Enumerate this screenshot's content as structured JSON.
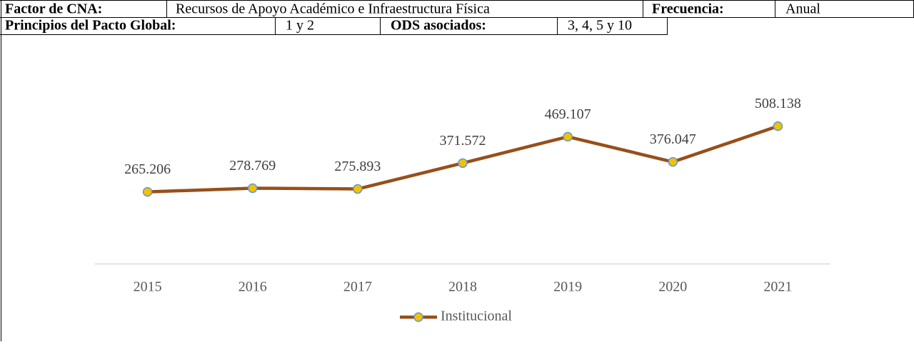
{
  "header": {
    "factor_label": "Factor de CNA:",
    "factor": "Recursos de Apoyo Académico e Infraestructura Física",
    "frecuencia_label": "Frecuencia:",
    "frecuencia": "Anual",
    "principios_label": "Principios del Pacto Global:",
    "principios": "1 y 2",
    "ods_label": "ODS asociados:",
    "ods": "3, 4, 5 y 10"
  },
  "chart_data": {
    "type": "line",
    "categories": [
      "2015",
      "2016",
      "2017",
      "2018",
      "2019",
      "2020",
      "2021"
    ],
    "series": [
      {
        "name": "Institucional",
        "color": "#96501a",
        "marker_color": "#f5c000",
        "marker_edge": "#5b9bd5",
        "values": [
          265206,
          278769,
          275893,
          371572,
          469107,
          376047,
          508138
        ],
        "value_labels": [
          "265.206",
          "278.769",
          "275.893",
          "371.572",
          "469.107",
          "376.047",
          "508.138"
        ]
      }
    ],
    "ylim": [
      0,
      700000
    ],
    "legend": "bottom"
  }
}
